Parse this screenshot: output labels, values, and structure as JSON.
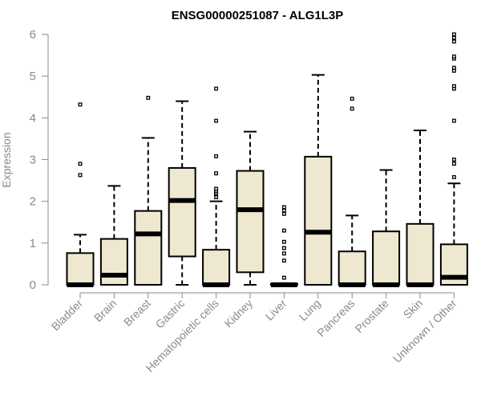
{
  "chart_data": {
    "type": "boxplot",
    "title": "ENSG00000251087 - ALG1L3P",
    "ylabel": "Expression",
    "xlabel": "",
    "ylim": [
      0,
      6
    ],
    "yticks": [
      "0",
      "1",
      "2",
      "3",
      "4",
      "5",
      "6"
    ],
    "colors": {
      "box_fill": "#efe8d0",
      "stroke": "#000000",
      "axis_text": "#8a8a8a"
    },
    "categories": [
      "Bladder",
      "Brain",
      "Breast",
      "Gastric",
      "Hematopoietic cells",
      "Kidney",
      "Liver",
      "Lung",
      "Pancreas",
      "Prostate",
      "Skin",
      "Unknown / Other"
    ],
    "boxes": [
      {
        "name": "Bladder",
        "whisker_low": 0,
        "q1": 0,
        "median": 0,
        "q3": 0.76,
        "whisker_high": 1.2,
        "outliers": [
          2.63,
          2.9,
          4.32
        ]
      },
      {
        "name": "Brain",
        "whisker_low": 0,
        "q1": 0,
        "median": 0.23,
        "q3": 1.1,
        "whisker_high": 2.37,
        "outliers": []
      },
      {
        "name": "Breast",
        "whisker_low": 0,
        "q1": 0,
        "median": 1.22,
        "q3": 1.77,
        "whisker_high": 3.52,
        "outliers": [
          4.48
        ]
      },
      {
        "name": "Gastric",
        "whisker_low": 0,
        "q1": 0.68,
        "median": 2.02,
        "q3": 2.8,
        "whisker_high": 4.4,
        "outliers": []
      },
      {
        "name": "Hematopoietic cells",
        "whisker_low": 0,
        "q1": 0,
        "median": 0,
        "q3": 0.84,
        "whisker_high": 2.0,
        "outliers": [
          2.1,
          2.17,
          2.2,
          2.25,
          2.3,
          2.67,
          3.08,
          3.93,
          4.7
        ]
      },
      {
        "name": "Kidney",
        "whisker_low": 0,
        "q1": 0.3,
        "median": 1.8,
        "q3": 2.73,
        "whisker_high": 3.67,
        "outliers": []
      },
      {
        "name": "Liver",
        "whisker_low": 0,
        "q1": 0,
        "median": 0,
        "q3": 0.02,
        "whisker_high": 0.04,
        "outliers": [
          0.17,
          0.58,
          0.75,
          0.88,
          1.03,
          1.3,
          1.7,
          1.78,
          1.86
        ]
      },
      {
        "name": "Lung",
        "whisker_low": 0,
        "q1": 0,
        "median": 1.26,
        "q3": 3.07,
        "whisker_high": 5.03,
        "outliers": []
      },
      {
        "name": "Pancreas",
        "whisker_low": 0,
        "q1": 0,
        "median": 0,
        "q3": 0.8,
        "whisker_high": 1.66,
        "outliers": [
          4.22,
          4.46
        ]
      },
      {
        "name": "Prostate",
        "whisker_low": 0,
        "q1": 0,
        "median": 0,
        "q3": 1.28,
        "whisker_high": 2.75,
        "outliers": []
      },
      {
        "name": "Skin",
        "whisker_low": 0,
        "q1": 0,
        "median": 0,
        "q3": 1.46,
        "whisker_high": 3.7,
        "outliers": []
      },
      {
        "name": "Unknown / Other",
        "whisker_low": 0,
        "q1": 0,
        "median": 0.18,
        "q3": 0.97,
        "whisker_high": 2.43,
        "outliers": [
          2.58,
          2.9,
          3.0,
          3.93,
          4.7,
          4.76,
          5.13,
          5.2,
          5.42,
          5.47,
          5.83,
          5.92,
          6.0
        ]
      }
    ]
  }
}
